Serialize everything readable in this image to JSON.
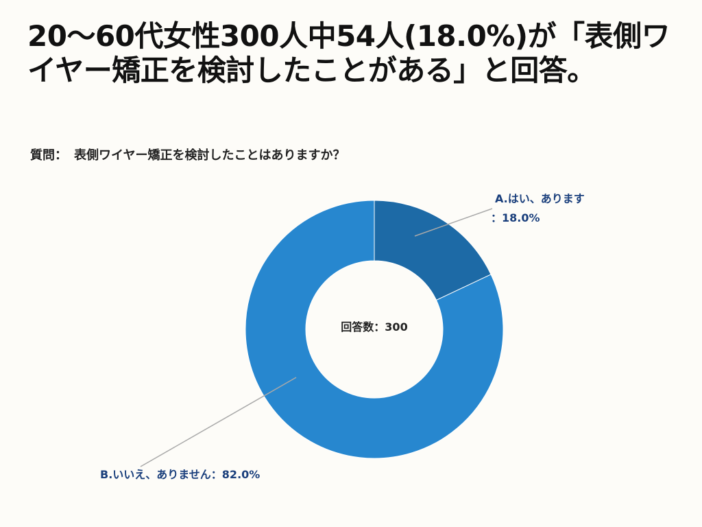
{
  "headline": "20〜60代女性300人中54人(18.0%)が「表側ワイヤー矯正を検討したことがある」と回答。",
  "question": {
    "prefix": "質問：",
    "text": "表側ワイヤー矯正を検討したことはありますか？"
  },
  "chart_data": {
    "type": "pie",
    "donut": true,
    "center_label": "回答数：300",
    "categories": [
      "A.はい、あります",
      "B.いいえ、ありません"
    ],
    "values": [
      18.0,
      82.0
    ],
    "value_labels": [
      "：18.0%",
      "：82.0%"
    ],
    "colors": [
      "#1d6aa6",
      "#2787cf"
    ],
    "leader_line_color": "#a9a9a9"
  }
}
